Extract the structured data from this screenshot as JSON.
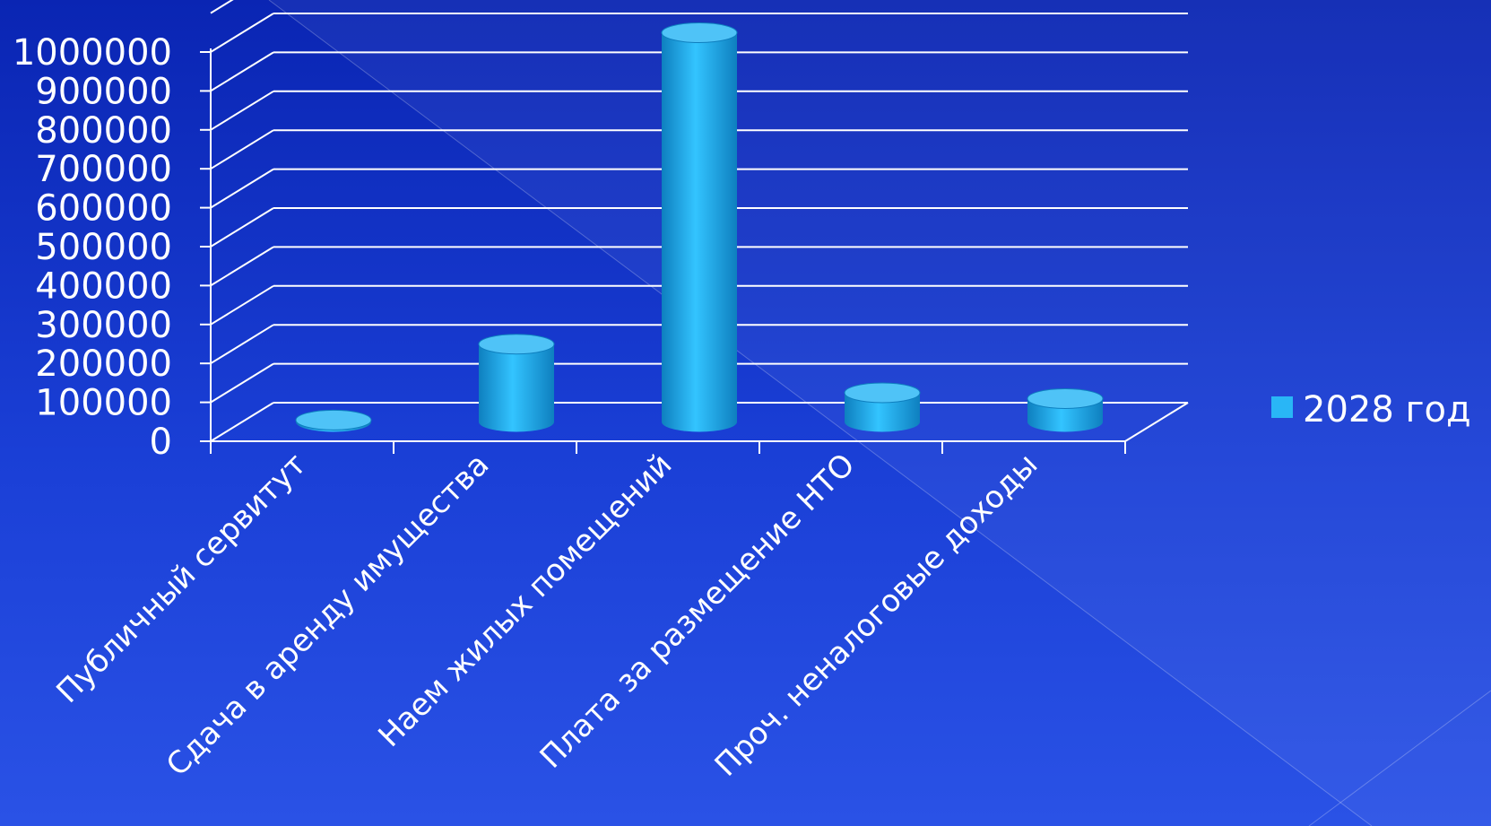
{
  "chart_data": {
    "type": "bar",
    "categories": [
      "Публичный сервитут",
      "Сдача в аренду имущества",
      "Наем жилых помещений",
      "Плата за размещение НТО",
      "Проч. неналоговые доходы"
    ],
    "series": [
      {
        "name": "2028 год",
        "values": [
          5000,
          200000,
          1000000,
          75000,
          60000
        ]
      }
    ],
    "y_ticks": [
      "0",
      "100000",
      "200000",
      "300000",
      "400000",
      "500000",
      "600000",
      "700000",
      "800000",
      "900000",
      "1000000"
    ],
    "ylim": [
      0,
      1000000
    ],
    "grid": true,
    "legend_position": "right",
    "style": "3d-cylinder",
    "colors": {
      "bar": "#29b6f6",
      "bar_dark": "#0e7fbf",
      "bar_top": "#4fc3f7",
      "grid": "#ffffff"
    }
  }
}
